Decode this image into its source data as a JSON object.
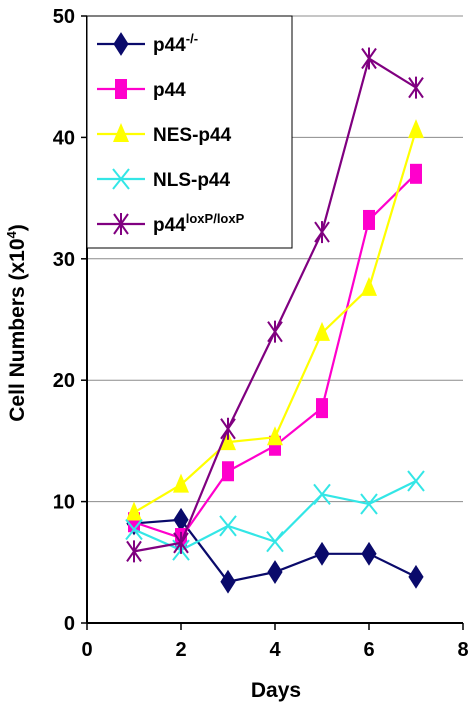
{
  "chart_data": {
    "type": "line",
    "xlabel": "Days",
    "ylabel": "Cell Numbers (x10",
    "ylabel_sup": "4",
    "ylabel_end": ")",
    "xlim": [
      0,
      8
    ],
    "ylim": [
      0,
      50
    ],
    "xticks": [
      "0",
      "2",
      "4",
      "6",
      "8"
    ],
    "yticks": [
      "0",
      "10",
      "20",
      "30",
      "40",
      "50"
    ],
    "grid": "horizontal",
    "legend_position": "top-left",
    "x": [
      1,
      2,
      3,
      4,
      5,
      6,
      7
    ],
    "series": [
      {
        "name": "p44",
        "name_sup": "-/-",
        "color": "#0a0a6b",
        "marker": "diamond",
        "values": [
          8.2,
          8.5,
          3.4,
          4.2,
          5.7,
          5.7,
          3.8
        ]
      },
      {
        "name": "p44",
        "name_sup": "",
        "color": "#ff00cc",
        "marker": "square",
        "values": [
          8.3,
          7.0,
          12.5,
          14.6,
          17.7,
          33.2,
          37.0
        ]
      },
      {
        "name": "NES-p44",
        "name_sup": "",
        "color": "#ffff00",
        "marker": "triangle",
        "values": [
          9.1,
          11.4,
          14.9,
          15.3,
          23.9,
          27.6,
          40.6
        ]
      },
      {
        "name": "NLS-p44",
        "name_sup": "",
        "color": "#33e6e6",
        "marker": "x",
        "values": [
          7.7,
          6.0,
          8.0,
          6.7,
          10.6,
          9.8,
          11.7
        ]
      },
      {
        "name": "p44",
        "name_sup": "loxP/loxP",
        "color": "#800080",
        "marker": "star",
        "values": [
          5.9,
          6.6,
          16.0,
          24.0,
          32.2,
          46.5,
          44.1
        ]
      }
    ]
  }
}
